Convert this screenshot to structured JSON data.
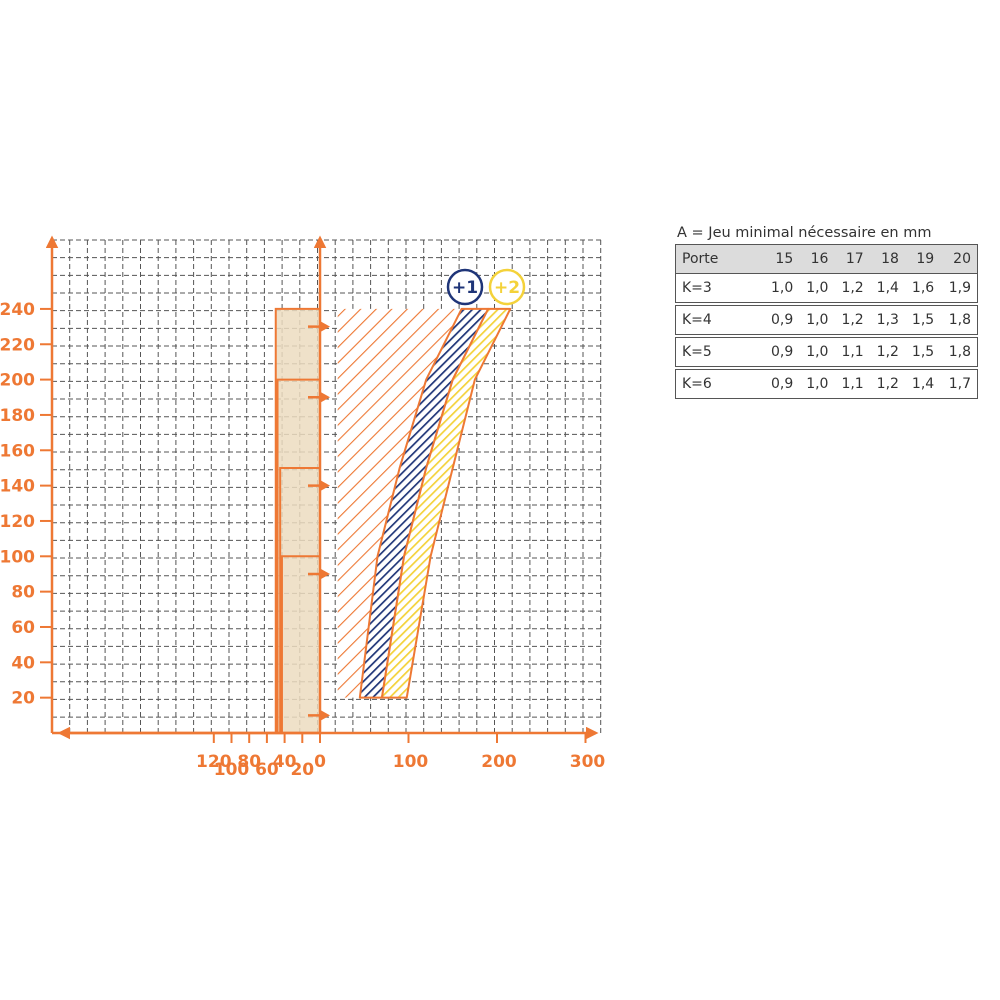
{
  "chart_data": {
    "type": "area",
    "x_axis": {
      "right_ticks": [
        0,
        100,
        200,
        300
      ],
      "left_ticks": [
        120,
        100,
        80,
        60,
        40,
        20
      ],
      "range": [
        -150,
        320
      ]
    },
    "y_axis": {
      "ticks": [
        20,
        40,
        60,
        80,
        100,
        120,
        140,
        160,
        180,
        200,
        220,
        240
      ],
      "range": [
        0,
        280
      ]
    },
    "grid": true,
    "hinge_zones": [
      {
        "x_left": -50,
        "y_top": 240
      },
      {
        "x_left": -48,
        "y_top": 200
      },
      {
        "x_left": -45,
        "y_top": 150
      },
      {
        "x_left": -43,
        "y_top": 100
      }
    ],
    "hinge_markers_y": [
      230,
      190,
      140,
      90,
      10
    ],
    "hatched_zone": {
      "x": [
        20,
        140
      ],
      "y": [
        20,
        240
      ]
    },
    "bands": [
      {
        "name": "+1",
        "color": "#1f3578",
        "y": [
          20,
          100,
          150,
          200,
          240
        ],
        "x_left": [
          45,
          65,
          90,
          120,
          160
        ],
        "x_right": [
          70,
          95,
          120,
          150,
          190
        ]
      },
      {
        "name": "+2",
        "color": "#f4d23a",
        "y": [
          20,
          100,
          150,
          200,
          240
        ],
        "x_left": [
          70,
          95,
          120,
          150,
          190
        ],
        "x_right": [
          98,
          125,
          150,
          175,
          215
        ]
      }
    ]
  },
  "table": {
    "title": "A = Jeu minimal nécessaire en mm",
    "header": [
      "Porte",
      "15",
      "16",
      "17",
      "18",
      "19",
      "20"
    ],
    "rows": [
      [
        "K=3",
        "1,0",
        "1,0",
        "1,2",
        "1,4",
        "1,6",
        "1,9"
      ],
      [
        "K=4",
        "0,9",
        "1,0",
        "1,2",
        "1,3",
        "1,5",
        "1,8"
      ],
      [
        "K=5",
        "0,9",
        "1,0",
        "1,1",
        "1,2",
        "1,5",
        "1,8"
      ],
      [
        "K=6",
        "0,9",
        "1,0",
        "1,1",
        "1,2",
        "1,4",
        "1,7"
      ]
    ]
  },
  "colors": {
    "orange": "#ee7834",
    "beige": "#ecdcc0",
    "navy": "#1f3578",
    "yellow": "#f4d23a",
    "grid": "#555555"
  }
}
